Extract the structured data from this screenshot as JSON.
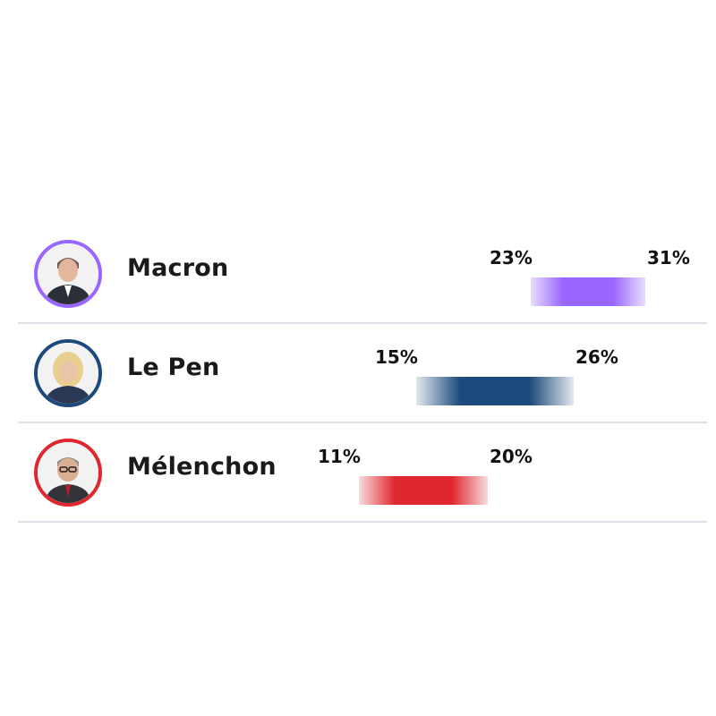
{
  "chart_data": {
    "type": "bar",
    "subtype": "range",
    "title": "",
    "x_unit": "%",
    "xlim": [
      0,
      37
    ],
    "series": [
      {
        "name": "Macron",
        "low": 23,
        "high": 31,
        "low_label": "23%",
        "high_label": "31%",
        "color": "#9966ff",
        "fade_color": "#e9defe"
      },
      {
        "name": "Le Pen",
        "low": 15,
        "high": 26,
        "low_label": "15%",
        "high_label": "26%",
        "color": "#1d4a7c",
        "fade_color": "#e3e9ef"
      },
      {
        "name": "Mélenchon",
        "low": 11,
        "high": 20,
        "low_label": "11%",
        "high_label": "20%",
        "color": "#e0262e",
        "fade_color": "#f7dcdc"
      }
    ]
  }
}
